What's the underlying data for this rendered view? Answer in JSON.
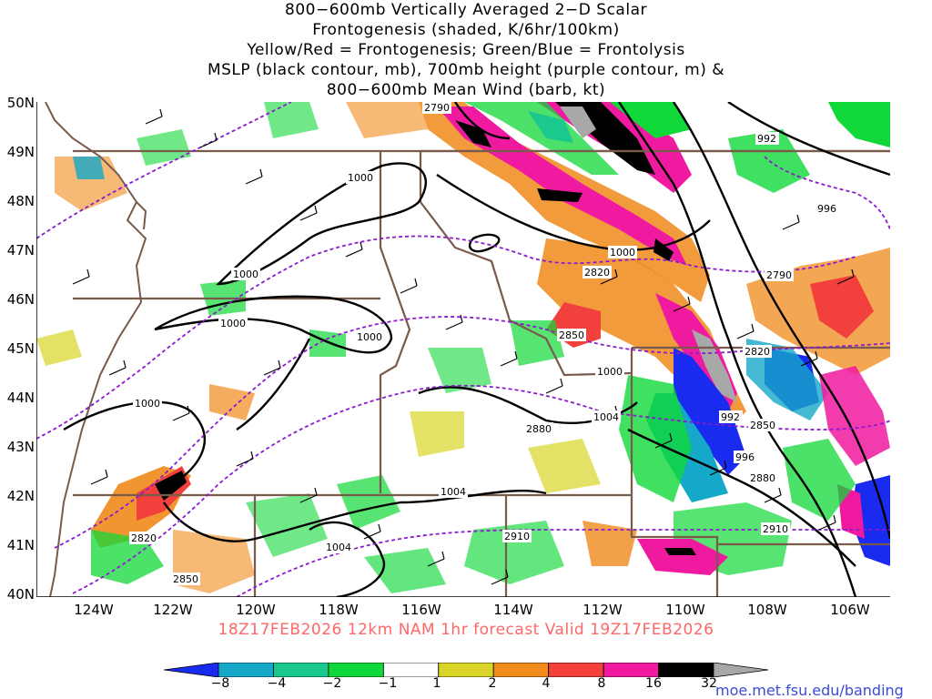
{
  "title": {
    "line1": "800−600mb Vertically Averaged 2−D Scalar",
    "line2": "Frontogenesis (shaded, K/6hr/100km)",
    "line3": "Yellow/Red = Frontogenesis;  Green/Blue = Frontolysis",
    "line4": "MSLP (black contour, mb), 700mb height (purple contour, m) &",
    "line5": "800−600mb Mean Wind (barb, kt)"
  },
  "footer": "18Z17FEB2026 12km NAM 1hr forecast Valid 19Z17FEB2026",
  "credit": "moe.met.fsu.edu/banding",
  "lat_labels": [
    "50N",
    "49N",
    "48N",
    "47N",
    "46N",
    "45N",
    "44N",
    "43N",
    "42N",
    "41N",
    "40N"
  ],
  "lon_labels": [
    "124W",
    "122W",
    "120W",
    "118W",
    "116W",
    "114W",
    "112W",
    "110W",
    "108W",
    "106W"
  ],
  "mslp_labels": [
    "1000",
    "1000",
    "1000",
    "1000",
    "1000",
    "1000",
    "1000",
    "1004",
    "1004",
    "1004",
    "992",
    "992",
    "996",
    "996"
  ],
  "height_labels": [
    "2790",
    "2790",
    "2820",
    "2820",
    "2850",
    "2850",
    "2850",
    "2880",
    "2880",
    "2910",
    "2910",
    "2820"
  ],
  "colorbar": {
    "labels": [
      "−8",
      "−4",
      "−2",
      "−1",
      "1",
      "2",
      "4",
      "8",
      "16",
      "32"
    ],
    "colors": [
      "#1a2bf0",
      "#16a8c8",
      "#1bc98e",
      "#10d838",
      "#ffffff",
      "#d9d427",
      "#f08a1a",
      "#f2403c",
      "#f01aa0",
      "#000000",
      "#a8a8a8"
    ]
  },
  "colors": {
    "mslp": "#000000",
    "height": "#8c1ad0",
    "borders": "#7a5a4a",
    "footer": "#ff6666",
    "credit": "#3b4bd6"
  }
}
